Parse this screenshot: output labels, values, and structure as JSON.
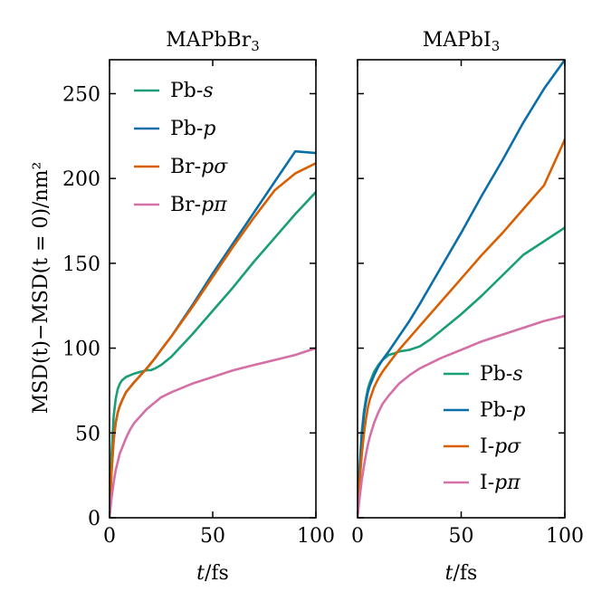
{
  "figure": {
    "ylabel": "MSD(t)−MSD(t = 0)/nm²",
    "xlabel": "t/fs"
  },
  "colors": {
    "s": "#1a9e77",
    "p": "#0a6fa8",
    "psigma": "#d95f02",
    "ppi": "#d470a6"
  },
  "chart_data": [
    {
      "type": "line",
      "title": "MAPbBr3",
      "title_base": "MAPbBr",
      "title_sub": "3",
      "xlabel": "t/fs",
      "ylabel": "MSD(t)−MSD(t = 0)/nm²",
      "xlim": [
        0,
        100
      ],
      "ylim": [
        0,
        270
      ],
      "xticks": [
        0,
        50,
        100
      ],
      "yticks": [
        0,
        50,
        100,
        150,
        200,
        250
      ],
      "legend_position": "top-left",
      "series": [
        {
          "name": "Pb-s",
          "label_prefix": "Pb-",
          "label_italic": "s",
          "color_key": "s",
          "x": [
            0,
            0.5,
            1,
            2,
            3,
            4,
            5,
            6,
            8,
            10,
            12,
            15,
            18,
            20,
            22,
            25,
            30,
            40,
            50,
            60,
            70,
            80,
            90,
            100
          ],
          "y": [
            0,
            20,
            38,
            60,
            70,
            76,
            79,
            81,
            83,
            84,
            85,
            86,
            87,
            87,
            88,
            90,
            95,
            108,
            122,
            136,
            151,
            165,
            179,
            192
          ]
        },
        {
          "name": "Pb-p",
          "label_prefix": "Pb-",
          "label_italic": "p",
          "color_key": "p",
          "x": [
            0,
            0.5,
            1,
            2,
            3,
            4,
            5,
            6,
            8,
            10,
            12,
            15,
            18,
            20,
            22,
            25,
            30,
            40,
            50,
            60,
            70,
            80,
            90,
            100
          ],
          "y": [
            0,
            15,
            28,
            46,
            56,
            62,
            66,
            69,
            74,
            77,
            80,
            84,
            88,
            91,
            94,
            99,
            107,
            125,
            144,
            162,
            180,
            198,
            216,
            215
          ]
        },
        {
          "name": "Br-pσ",
          "label_prefix": "Br-",
          "label_italic": "pσ",
          "color_key": "psigma",
          "x": [
            0,
            0.5,
            1,
            2,
            3,
            4,
            5,
            6,
            8,
            10,
            12,
            15,
            18,
            20,
            22,
            25,
            30,
            40,
            50,
            60,
            70,
            80,
            90,
            100
          ],
          "y": [
            0,
            15,
            28,
            46,
            56,
            62,
            66,
            69,
            74,
            77,
            80,
            84,
            88,
            91,
            94,
            99,
            107,
            124,
            142,
            160,
            177,
            193,
            203,
            209
          ]
        },
        {
          "name": "Br-pπ",
          "label_prefix": "Br-",
          "label_italic": "pπ",
          "color_key": "ppi",
          "x": [
            0,
            0.5,
            1,
            2,
            3,
            4,
            5,
            6,
            8,
            10,
            12,
            15,
            18,
            20,
            25,
            30,
            40,
            50,
            60,
            70,
            80,
            90,
            100
          ],
          "y": [
            0,
            6,
            12,
            21,
            28,
            33,
            38,
            41,
            47,
            52,
            56,
            60,
            64,
            66,
            71,
            74,
            79,
            83,
            87,
            90,
            93,
            96,
            100
          ]
        }
      ]
    },
    {
      "type": "line",
      "title": "MAPbI3",
      "title_base": "MAPbI",
      "title_sub": "3",
      "xlabel": "t/fs",
      "ylabel": "",
      "xlim": [
        0,
        100
      ],
      "ylim": [
        0,
        270
      ],
      "xticks": [
        0,
        50,
        100
      ],
      "yticks": [
        0,
        50,
        100,
        150,
        200,
        250
      ],
      "legend_position": "bottom-right",
      "series": [
        {
          "name": "Pb-s",
          "label_prefix": "Pb-",
          "label_italic": "s",
          "color_key": "s",
          "x": [
            0,
            0.5,
            1,
            2,
            3,
            4,
            5,
            6,
            8,
            10,
            12,
            15,
            18,
            20,
            25,
            30,
            35,
            40,
            50,
            60,
            70,
            80,
            90,
            100
          ],
          "y": [
            0,
            16,
            30,
            50,
            62,
            70,
            76,
            80,
            86,
            90,
            93,
            96,
            97,
            98,
            99,
            101,
            105,
            110,
            120,
            131,
            143,
            155,
            163,
            171
          ]
        },
        {
          "name": "Pb-p",
          "label_prefix": "Pb-",
          "label_italic": "p",
          "color_key": "p",
          "x": [
            0,
            0.5,
            1,
            2,
            3,
            4,
            5,
            6,
            8,
            10,
            12,
            15,
            20,
            25,
            30,
            40,
            50,
            60,
            70,
            80,
            90,
            100
          ],
          "y": [
            0,
            14,
            27,
            47,
            60,
            68,
            74,
            78,
            84,
            89,
            93,
            98,
            107,
            116,
            126,
            147,
            168,
            190,
            211,
            233,
            253,
            270
          ]
        },
        {
          "name": "I-pσ",
          "label_prefix": "I-",
          "label_italic": "pσ",
          "color_key": "psigma",
          "x": [
            0,
            0.5,
            1,
            2,
            3,
            4,
            5,
            6,
            8,
            10,
            12,
            15,
            20,
            25,
            30,
            40,
            50,
            60,
            70,
            80,
            90,
            100
          ],
          "y": [
            0,
            11,
            21,
            37,
            49,
            58,
            65,
            70,
            77,
            82,
            86,
            91,
            99,
            106,
            113,
            127,
            141,
            155,
            168,
            182,
            196,
            223
          ]
        },
        {
          "name": "I-pπ",
          "label_prefix": "I-",
          "label_italic": "pπ",
          "color_key": "ppi",
          "x": [
            0,
            0.5,
            1,
            2,
            3,
            4,
            5,
            6,
            8,
            10,
            12,
            15,
            20,
            25,
            30,
            40,
            50,
            60,
            70,
            80,
            90,
            100
          ],
          "y": [
            0,
            6,
            12,
            22,
            30,
            37,
            43,
            48,
            56,
            62,
            67,
            72,
            79,
            84,
            88,
            94,
            99,
            104,
            108,
            112,
            116,
            119
          ]
        }
      ]
    }
  ]
}
